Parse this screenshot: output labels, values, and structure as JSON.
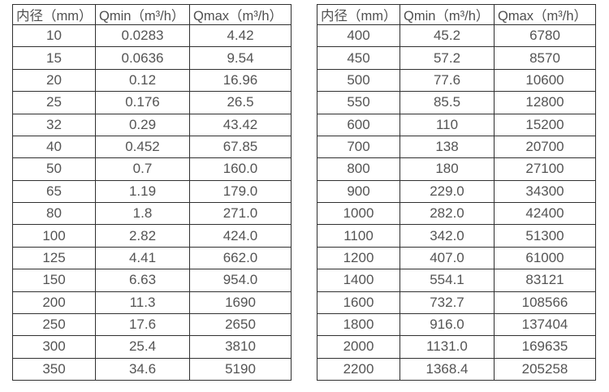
{
  "colors": {
    "background": "#ffffff",
    "text": "#4f4f4f",
    "border": "#303030"
  },
  "chart_data": [
    {
      "type": "table",
      "columns": [
        "内径（mm）",
        "Qmin（m³/h）",
        "Qmax（m³/h）"
      ],
      "rows": [
        [
          "10",
          "0.0283",
          "4.42"
        ],
        [
          "15",
          "0.0636",
          "9.54"
        ],
        [
          "20",
          "0.12",
          "16.96"
        ],
        [
          "25",
          "0.176",
          "26.5"
        ],
        [
          "32",
          "0.29",
          "43.42"
        ],
        [
          "40",
          "0.452",
          "67.85"
        ],
        [
          "50",
          "0.7",
          "160.0"
        ],
        [
          "65",
          "1.19",
          "179.0"
        ],
        [
          "80",
          "1.8",
          "271.0"
        ],
        [
          "100",
          "2.82",
          "424.0"
        ],
        [
          "125",
          "4.41",
          "662.0"
        ],
        [
          "150",
          "6.63",
          "954.0"
        ],
        [
          "200",
          "11.3",
          "1690"
        ],
        [
          "250",
          "17.6",
          "2650"
        ],
        [
          "300",
          "25.4",
          "3810"
        ],
        [
          "350",
          "34.6",
          "5190"
        ]
      ]
    },
    {
      "type": "table",
      "columns": [
        "内径（mm）",
        "Qmin（m³/h）",
        "Qmax（m³/h）"
      ],
      "rows": [
        [
          "400",
          "45.2",
          "6780"
        ],
        [
          "450",
          "57.2",
          "8570"
        ],
        [
          "500",
          "77.6",
          "10600"
        ],
        [
          "550",
          "85.5",
          "12800"
        ],
        [
          "600",
          "110",
          "15200"
        ],
        [
          "700",
          "138",
          "20700"
        ],
        [
          "800",
          "180",
          "27100"
        ],
        [
          "900",
          "229.0",
          "34300"
        ],
        [
          "1000",
          "282.0",
          "42400"
        ],
        [
          "1100",
          "342.0",
          "51300"
        ],
        [
          "1200",
          "407.0",
          "61000"
        ],
        [
          "1400",
          "554.1",
          "83121"
        ],
        [
          "1600",
          "732.7",
          "108566"
        ],
        [
          "1800",
          "916.0",
          "137404"
        ],
        [
          "2000",
          "1131.0",
          "169635"
        ],
        [
          "2200",
          "1368.4",
          "205258"
        ]
      ]
    }
  ]
}
